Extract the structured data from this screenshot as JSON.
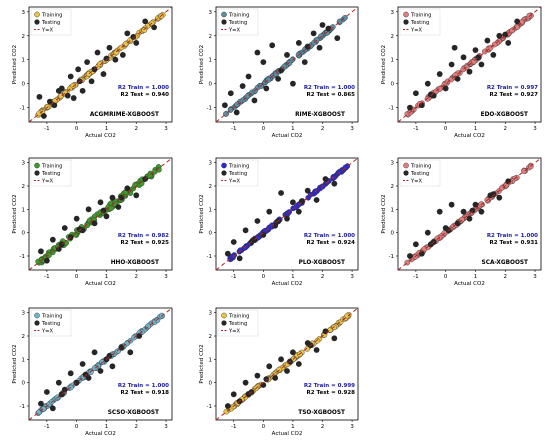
{
  "figure": {
    "x_label": "Actual CO2",
    "y_label": "Predicted CO2",
    "legend": [
      "Training",
      "Testing",
      "Y=X"
    ],
    "colors": {
      "testing": "#262626",
      "identity_line": "#b22222",
      "r2_text": "#1a1aa6",
      "frame": "#000000"
    }
  },
  "chart_data": [
    {
      "type": "scatter",
      "title": "ACGMRIME-XGBOOST",
      "r2_train_label": "R2 Train = 1.000",
      "r2_test_label": "R2 Test = 0.940",
      "train_color": "#e8c547",
      "xticks": [
        "-1",
        "0",
        "1",
        "2",
        "3"
      ],
      "yticks": [
        "-1",
        "0",
        "1",
        "2",
        "3"
      ],
      "xlim": [
        -1.6,
        3.2
      ],
      "ylim": [
        -1.6,
        3.2
      ],
      "testing": [
        [
          -1.25,
          -0.55
        ],
        [
          -1.1,
          -1.35
        ],
        [
          -0.9,
          -0.75
        ],
        [
          -0.75,
          -0.9
        ],
        [
          -0.6,
          -0.3
        ],
        [
          -0.5,
          -0.2
        ],
        [
          -0.2,
          0.3
        ],
        [
          -0.1,
          -0.6
        ],
        [
          0.05,
          0.6
        ],
        [
          0.2,
          -0.3
        ],
        [
          0.35,
          0.9
        ],
        [
          0.5,
          0.1
        ],
        [
          0.7,
          1.3
        ],
        [
          0.9,
          0.4
        ],
        [
          1.1,
          1.5
        ],
        [
          1.3,
          1.0
        ],
        [
          1.55,
          1.2
        ],
        [
          1.7,
          2.1
        ],
        [
          2.0,
          1.7
        ],
        [
          2.3,
          2.6
        ],
        [
          2.6,
          2.35
        ],
        [
          -0.3,
          -0.5
        ],
        [
          0.1,
          0.1
        ],
        [
          0.6,
          0.6
        ],
        [
          1.0,
          1.05
        ],
        [
          1.9,
          1.95
        ]
      ]
    },
    {
      "type": "scatter",
      "title": "RIME-XGBOOST",
      "r2_train_label": "R2 Train = 1.000",
      "r2_test_label": "R2 Test = 0.865",
      "train_color": "#5a8fa8",
      "xticks": [
        "-1",
        "0",
        "1",
        "2",
        "3"
      ],
      "yticks": [
        "-1",
        "0",
        "1",
        "2",
        "3"
      ],
      "xlim": [
        -1.6,
        3.2
      ],
      "ylim": [
        -1.6,
        3.2
      ],
      "testing": [
        [
          -1.3,
          -0.9
        ],
        [
          -1.1,
          -0.4
        ],
        [
          -0.9,
          -1.2
        ],
        [
          -0.7,
          -0.1
        ],
        [
          -0.5,
          0.3
        ],
        [
          -0.3,
          -0.7
        ],
        [
          0.0,
          0.9
        ],
        [
          0.1,
          -0.2
        ],
        [
          0.3,
          1.6
        ],
        [
          0.5,
          0.2
        ],
        [
          0.8,
          1.2
        ],
        [
          1.0,
          0.0
        ],
        [
          1.2,
          1.7
        ],
        [
          1.4,
          0.9
        ],
        [
          1.7,
          2.1
        ],
        [
          1.9,
          1.5
        ],
        [
          2.2,
          2.3
        ],
        [
          2.5,
          1.9
        ],
        [
          -0.2,
          1.3
        ],
        [
          0.6,
          0.55
        ],
        [
          1.5,
          1.55
        ],
        [
          2.0,
          2.45
        ]
      ]
    },
    {
      "type": "scatter",
      "title": "EDO-XGBOOST",
      "r2_train_label": "R2 Train = 0.997",
      "r2_test_label": "R2 Test = 0.927",
      "train_color": "#e07e7e",
      "xticks": [
        "-1",
        "0",
        "1",
        "2",
        "3"
      ],
      "yticks": [
        "-1",
        "0",
        "1",
        "2",
        "3"
      ],
      "xlim": [
        -1.6,
        3.2
      ],
      "ylim": [
        -1.6,
        3.2
      ],
      "testing": [
        [
          -1.2,
          -1.0
        ],
        [
          -1.0,
          -0.4
        ],
        [
          -0.8,
          -0.9
        ],
        [
          -0.6,
          0.0
        ],
        [
          -0.4,
          -0.5
        ],
        [
          -0.2,
          0.4
        ],
        [
          0.0,
          -0.2
        ],
        [
          0.2,
          0.8
        ],
        [
          0.4,
          0.2
        ],
        [
          0.6,
          1.1
        ],
        [
          0.8,
          0.5
        ],
        [
          1.0,
          1.4
        ],
        [
          1.2,
          0.8
        ],
        [
          1.4,
          1.8
        ],
        [
          1.6,
          1.2
        ],
        [
          1.8,
          2.0
        ],
        [
          2.1,
          1.7
        ],
        [
          2.4,
          2.6
        ],
        [
          0.3,
          1.5
        ],
        [
          1.1,
          1.1
        ],
        [
          -0.5,
          -0.45
        ],
        [
          2.0,
          2.05
        ]
      ]
    },
    {
      "type": "scatter",
      "title": "HHO-XGBOOST",
      "r2_train_label": "R2 Train = 0.982",
      "r2_test_label": "R2 Test = 0.925",
      "train_color": "#3f9a2c",
      "xticks": [
        "-1",
        "0",
        "1",
        "2",
        "3"
      ],
      "yticks": [
        "-1",
        "0",
        "1",
        "2",
        "3"
      ],
      "xlim": [
        -1.6,
        3.2
      ],
      "ylim": [
        -1.6,
        3.2
      ],
      "testing": [
        [
          -1.2,
          -0.8
        ],
        [
          -1.0,
          -1.2
        ],
        [
          -0.8,
          -0.3
        ],
        [
          -0.6,
          -0.7
        ],
        [
          -0.4,
          0.2
        ],
        [
          -0.2,
          -0.2
        ],
        [
          0.0,
          0.6
        ],
        [
          0.2,
          0.1
        ],
        [
          0.4,
          1.0
        ],
        [
          0.6,
          0.4
        ],
        [
          0.8,
          1.3
        ],
        [
          1.0,
          0.7
        ],
        [
          1.2,
          1.5
        ],
        [
          1.4,
          1.1
        ],
        [
          1.7,
          1.9
        ],
        [
          2.0,
          1.6
        ],
        [
          2.3,
          2.3
        ],
        [
          0.1,
          0.15
        ],
        [
          0.9,
          0.95
        ],
        [
          1.5,
          1.5
        ],
        [
          -0.5,
          -0.5
        ]
      ]
    },
    {
      "type": "scatter",
      "title": "PLO-XGBOOST",
      "r2_train_label": "R2 Train = 1.000",
      "r2_test_label": "R2 Test = 0.924",
      "train_color": "#2b2bd6",
      "xticks": [
        "-1",
        "0",
        "1",
        "2",
        "3"
      ],
      "yticks": [
        "-1",
        "0",
        "1",
        "2",
        "3"
      ],
      "xlim": [
        -1.6,
        3.2
      ],
      "ylim": [
        -1.6,
        3.2
      ],
      "testing": [
        [
          -1.2,
          -0.9
        ],
        [
          -1.0,
          -0.4
        ],
        [
          -0.8,
          -1.1
        ],
        [
          -0.6,
          0.1
        ],
        [
          -0.4,
          -0.4
        ],
        [
          -0.2,
          0.5
        ],
        [
          0.0,
          -0.1
        ],
        [
          0.2,
          0.9
        ],
        [
          0.4,
          0.3
        ],
        [
          0.6,
          1.7
        ],
        [
          0.8,
          0.6
        ],
        [
          1.0,
          1.3
        ],
        [
          1.2,
          0.9
        ],
        [
          1.5,
          1.8
        ],
        [
          1.8,
          1.4
        ],
        [
          2.1,
          2.3
        ],
        [
          2.4,
          2.1
        ],
        [
          0.5,
          0.5
        ],
        [
          1.3,
          1.35
        ],
        [
          -0.3,
          -0.3
        ]
      ]
    },
    {
      "type": "scatter",
      "title": "SCA-XGBOOST",
      "r2_train_label": "R2 Train = 1.000",
      "r2_test_label": "R2 Test = 0.931",
      "train_color": "#e07e7e",
      "xticks": [
        "-1",
        "0",
        "1",
        "2",
        "3"
      ],
      "yticks": [
        "-1",
        "0",
        "1",
        "2",
        "3"
      ],
      "xlim": [
        -1.6,
        3.2
      ],
      "ylim": [
        -1.6,
        3.2
      ],
      "testing": [
        [
          -1.2,
          -1.0
        ],
        [
          -1.0,
          -0.5
        ],
        [
          -0.8,
          -0.9
        ],
        [
          -0.6,
          0.0
        ],
        [
          -0.4,
          -0.4
        ],
        [
          -0.2,
          0.9
        ],
        [
          0.0,
          0.2
        ],
        [
          0.2,
          1.2
        ],
        [
          0.4,
          0.4
        ],
        [
          0.6,
          0.9
        ],
        [
          0.8,
          0.6
        ],
        [
          1.0,
          1.2
        ],
        [
          1.2,
          0.9
        ],
        [
          1.5,
          1.6
        ],
        [
          1.8,
          1.5
        ],
        [
          2.1,
          2.2
        ],
        [
          0.1,
          0.1
        ],
        [
          0.9,
          0.95
        ],
        [
          -0.5,
          -0.5
        ],
        [
          1.6,
          1.65
        ]
      ]
    },
    {
      "type": "scatter",
      "title": "SCSO-XGBOOST",
      "r2_train_label": "R2 Train = 1.000",
      "r2_test_label": "R2 Test = 0.918",
      "train_color": "#6fb4cc",
      "xticks": [
        "-1",
        "0",
        "1",
        "2",
        "3"
      ],
      "yticks": [
        "-1",
        "0",
        "1",
        "2",
        "3"
      ],
      "xlim": [
        -1.6,
        3.2
      ],
      "ylim": [
        -1.6,
        3.2
      ],
      "testing": [
        [
          -1.2,
          -0.9
        ],
        [
          -1.0,
          -0.4
        ],
        [
          -0.8,
          -1.1
        ],
        [
          -0.6,
          0.0
        ],
        [
          -0.4,
          -0.3
        ],
        [
          -0.2,
          0.4
        ],
        [
          0.0,
          0.0
        ],
        [
          0.2,
          0.8
        ],
        [
          0.4,
          0.2
        ],
        [
          0.6,
          1.3
        ],
        [
          0.8,
          0.5
        ],
        [
          1.0,
          1.0
        ],
        [
          1.2,
          0.7
        ],
        [
          1.5,
          1.5
        ],
        [
          1.8,
          1.3
        ],
        [
          2.1,
          2.0
        ],
        [
          0.3,
          0.35
        ],
        [
          1.1,
          1.15
        ],
        [
          -0.5,
          -0.5
        ]
      ]
    },
    {
      "type": "scatter",
      "title": "TSO-XGBOOST",
      "r2_train_label": "R2 Train = 0.999",
      "r2_test_label": "R2 Test = 0.928",
      "train_color": "#e8c547",
      "xticks": [
        "-1",
        "0",
        "1",
        "2",
        "3"
      ],
      "yticks": [
        "-1",
        "0",
        "1",
        "2",
        "3"
      ],
      "xlim": [
        -1.6,
        3.2
      ],
      "ylim": [
        -1.6,
        3.2
      ],
      "testing": [
        [
          -1.2,
          -1.0
        ],
        [
          -1.0,
          -0.5
        ],
        [
          -0.8,
          -0.8
        ],
        [
          -0.6,
          0.0
        ],
        [
          -0.4,
          -0.4
        ],
        [
          -0.2,
          0.3
        ],
        [
          0.0,
          -0.1
        ],
        [
          0.2,
          0.7
        ],
        [
          0.4,
          0.2
        ],
        [
          0.6,
          1.0
        ],
        [
          0.8,
          0.5
        ],
        [
          1.0,
          1.3
        ],
        [
          1.2,
          0.8
        ],
        [
          1.5,
          1.7
        ],
        [
          1.8,
          1.4
        ],
        [
          2.1,
          2.2
        ],
        [
          2.4,
          1.9
        ],
        [
          0.1,
          0.15
        ],
        [
          0.9,
          0.9
        ],
        [
          -0.5,
          -0.5
        ],
        [
          1.6,
          1.6
        ]
      ]
    }
  ]
}
